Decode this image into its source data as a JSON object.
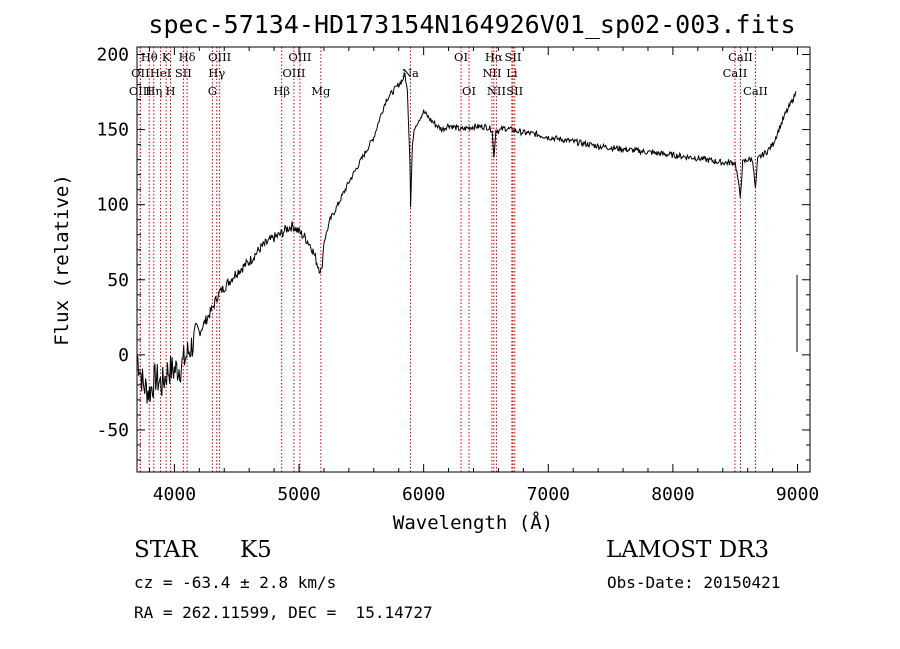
{
  "chart_data": {
    "type": "line",
    "title": "spec-57134-HD173154N164926V01_sp02-003.fits",
    "xlabel": "Wavelength (Å)",
    "ylabel": "Flux (relative)",
    "xlim": [
      3700,
      9100
    ],
    "ylim": [
      -78,
      205
    ],
    "xticks": [
      4000,
      5000,
      6000,
      7000,
      8000,
      9000
    ],
    "yticks": [
      -50,
      0,
      50,
      100,
      150,
      200
    ],
    "series": [
      {
        "name": "flux",
        "x": [
          3700,
          3750,
          3800,
          3850,
          3900,
          3950,
          4000,
          4050,
          4100,
          4150,
          4200,
          4300,
          4350,
          4400,
          4500,
          4600,
          4700,
          4800,
          4850,
          4900,
          4950,
          5000,
          5050,
          5100,
          5150,
          5180,
          5200,
          5250,
          5300,
          5400,
          5500,
          5600,
          5650,
          5700,
          5750,
          5800,
          5830,
          5850,
          5870,
          5890,
          5895,
          5910,
          5930,
          5950,
          6000,
          6050,
          6100,
          6150,
          6200,
          6300,
          6400,
          6500,
          6550,
          6563,
          6580,
          6600,
          6650,
          6700,
          6750,
          6800,
          6900,
          7000,
          7200,
          7400,
          7600,
          7800,
          8000,
          8200,
          8400,
          8500,
          8520,
          8540,
          8560,
          8600,
          8640,
          8662,
          8680,
          8700,
          8750,
          8800,
          8850,
          8900,
          8950,
          8990
        ],
        "y": [
          0,
          -20,
          -25,
          -15,
          -20,
          -10,
          -10,
          -8,
          0,
          8,
          15,
          30,
          40,
          45,
          55,
          62,
          72,
          78,
          80,
          84,
          86,
          82,
          78,
          72,
          60,
          55,
          75,
          90,
          98,
          115,
          130,
          145,
          158,
          170,
          175,
          180,
          183,
          187,
          175,
          130,
          100,
          140,
          152,
          155,
          162,
          157,
          153,
          150,
          153,
          150,
          152,
          152,
          150,
          131,
          150,
          149,
          151,
          150,
          149,
          148,
          147,
          145,
          142,
          139,
          137,
          135,
          133,
          131,
          128,
          128,
          118,
          105,
          128,
          130,
          130,
          110,
          130,
          132,
          135,
          140,
          150,
          160,
          168,
          175
        ]
      }
    ],
    "spectral_lines": [
      {
        "name": "Hθ",
        "wavelength": 3798,
        "row": 1
      },
      {
        "name": "OII",
        "wavelength": 3727,
        "row": 2
      },
      {
        "name": "OIII",
        "wavelength": 3727,
        "row": 3
      },
      {
        "name": "K",
        "wavelength": 3934,
        "row": 1
      },
      {
        "name": "HeI",
        "wavelength": 3889,
        "row": 2
      },
      {
        "name": "Hη",
        "wavelength": 3835,
        "row": 3
      },
      {
        "name": "Hδ",
        "wavelength": 4102,
        "row": 1
      },
      {
        "name": "SII",
        "wavelength": 4072,
        "row": 2
      },
      {
        "name": "H",
        "wavelength": 3969,
        "row": 3
      },
      {
        "name": "OIII",
        "wavelength": 4363,
        "row": 1
      },
      {
        "name": "Hγ",
        "wavelength": 4340,
        "row": 2
      },
      {
        "name": "G",
        "wavelength": 4305,
        "row": 3
      },
      {
        "name": "Hβ",
        "wavelength": 4861,
        "row": 3
      },
      {
        "name": "OIII",
        "wavelength": 5007,
        "row": 1
      },
      {
        "name": "OIII",
        "wavelength": 4959,
        "row": 2
      },
      {
        "name": "Mg",
        "wavelength": 5175,
        "row": 3
      },
      {
        "name": "Na",
        "wavelength": 5894,
        "row": 2
      },
      {
        "name": "OI",
        "wavelength": 6300,
        "row": 1
      },
      {
        "name": "OI",
        "wavelength": 6364,
        "row": 3
      },
      {
        "name": "Hα",
        "wavelength": 6563,
        "row": 1
      },
      {
        "name": "NII",
        "wavelength": 6548,
        "row": 2
      },
      {
        "name": "NII",
        "wavelength": 6584,
        "row": 3
      },
      {
        "name": "SII",
        "wavelength": 6717,
        "row": 1
      },
      {
        "name": "Li",
        "wavelength": 6708,
        "row": 2
      },
      {
        "name": "SII",
        "wavelength": 6731,
        "row": 3
      },
      {
        "name": "CaII",
        "wavelength": 8542,
        "row": 1
      },
      {
        "name": "CaII",
        "wavelength": 8498,
        "row": 2
      },
      {
        "name": "CaII",
        "wavelength": 8662,
        "row": 3
      }
    ],
    "line_color": "#000000",
    "marker_color": "#cc0000"
  },
  "info": {
    "type": "STAR",
    "subclass": "K5",
    "survey": "LAMOST DR3",
    "redshift": "cz = -63.4 ± 2.8 km/s",
    "obs_date": "Obs-Date: 20150421",
    "coords": "RA = 262.11599, DEC =  15.14727"
  }
}
